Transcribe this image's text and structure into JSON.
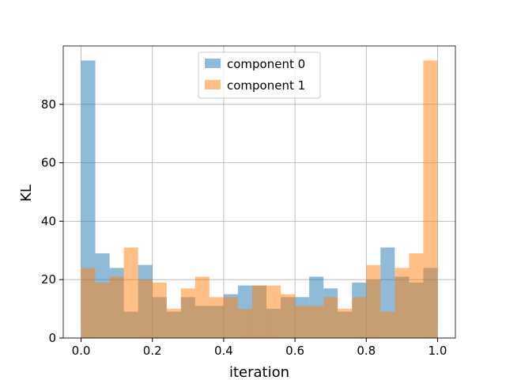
{
  "chart_data": {
    "type": "bar",
    "subtype": "overlapping-histogram",
    "xlabel": "iteration",
    "ylabel": "KL",
    "xlim": [
      -0.05,
      1.05
    ],
    "ylim": [
      0,
      100
    ],
    "xticks": [
      "0.0",
      "0.2",
      "0.4",
      "0.6",
      "0.8",
      "1.0"
    ],
    "yticks": [
      "0",
      "20",
      "40",
      "60",
      "80"
    ],
    "grid": true,
    "legend_position": "upper-center",
    "bin_edges": [
      0.0,
      0.04,
      0.08,
      0.12,
      0.16,
      0.2,
      0.24,
      0.28,
      0.32,
      0.36,
      0.4,
      0.44,
      0.48,
      0.52,
      0.56,
      0.6,
      0.64,
      0.68,
      0.72,
      0.76,
      0.8,
      0.84,
      0.88,
      0.92,
      0.96,
      1.0
    ],
    "series": [
      {
        "name": "component 0",
        "color": "#1f77b4",
        "alpha": 0.5,
        "values": [
          95,
          29,
          24,
          9,
          25,
          14,
          9,
          14,
          11,
          11,
          15,
          18,
          18,
          10,
          14,
          14,
          21,
          17,
          9,
          19,
          20,
          31,
          21,
          19,
          24
        ]
      },
      {
        "name": "component 1",
        "color": "#ff7f0e",
        "alpha": 0.5,
        "values": [
          24,
          19,
          21,
          31,
          20,
          19,
          10,
          17,
          21,
          14,
          14,
          10,
          18,
          18,
          15,
          11,
          11,
          14,
          10,
          14,
          25,
          9,
          24,
          29,
          95
        ]
      }
    ]
  }
}
